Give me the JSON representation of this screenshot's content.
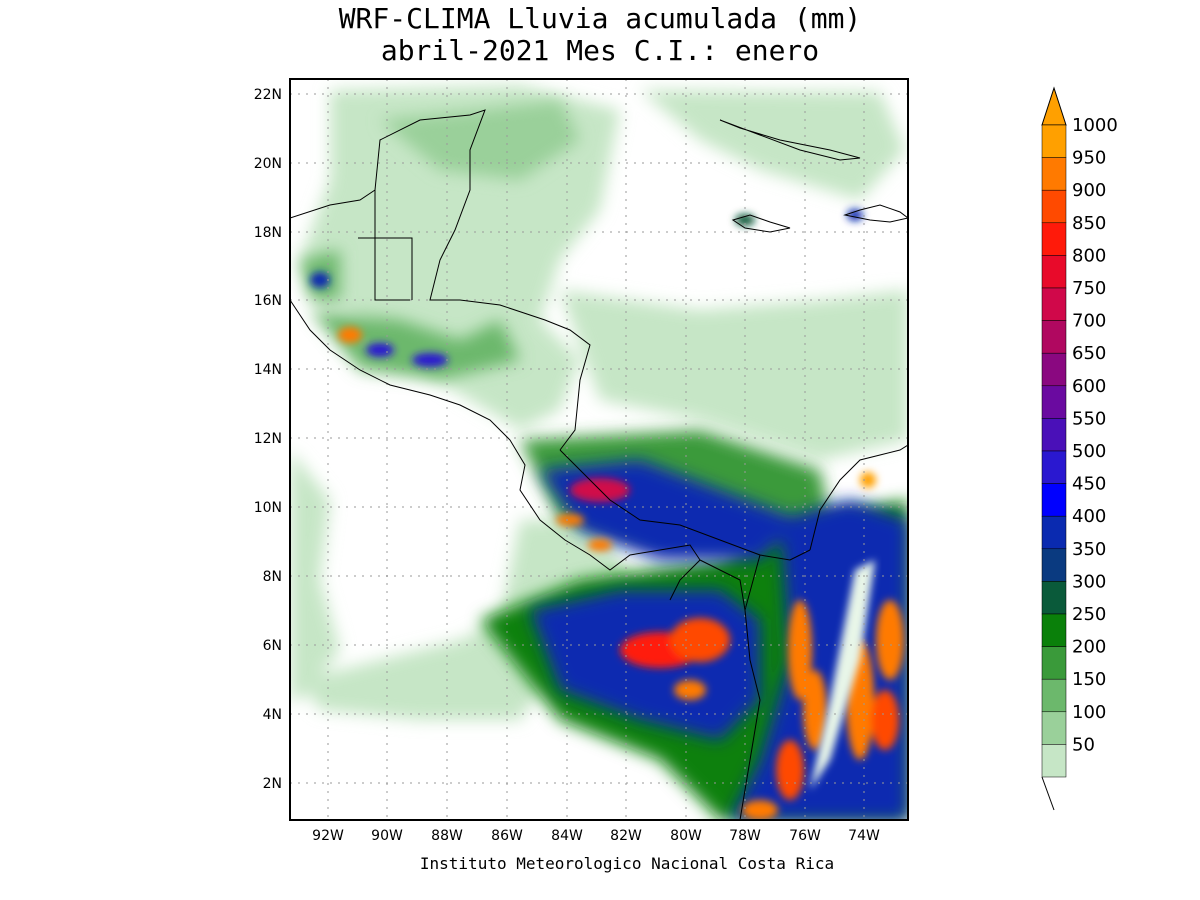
{
  "title_line1": "WRF-CLIMA Lluvia acumulada (mm)",
  "title_line2": "abril-2021 Mes C.I.: enero",
  "credit": "Instituto Meteorologico Nacional Costa Rica",
  "lat_labels": [
    "22N",
    "20N",
    "18N",
    "16N",
    "14N",
    "12N",
    "10N",
    "8N",
    "6N",
    "4N",
    "2N"
  ],
  "lon_labels": [
    "92W",
    "90W",
    "88W",
    "86W",
    "84W",
    "82W",
    "80W",
    "78W",
    "76W",
    "74W"
  ],
  "colorbar": {
    "levels": [
      "50",
      "100",
      "150",
      "200",
      "250",
      "300",
      "350",
      "400",
      "450",
      "500",
      "550",
      "600",
      "650",
      "700",
      "750",
      "800",
      "850",
      "900",
      "950",
      "1000"
    ],
    "colors": [
      "#c6e6c6",
      "#9ad09a",
      "#6cb86c",
      "#3a9a3a",
      "#0a800a",
      "#0a5a3a",
      "#0a3a80",
      "#0a2ab0",
      "#0000ff",
      "#2a18d0",
      "#4a10b8",
      "#6a0aa0",
      "#8a0880",
      "#b00860",
      "#d0084a",
      "#e80a2a",
      "#ff1a0a",
      "#ff4a00",
      "#ff7a00",
      "#ffa000"
    ],
    "arrow_color": "#ffa000"
  }
}
